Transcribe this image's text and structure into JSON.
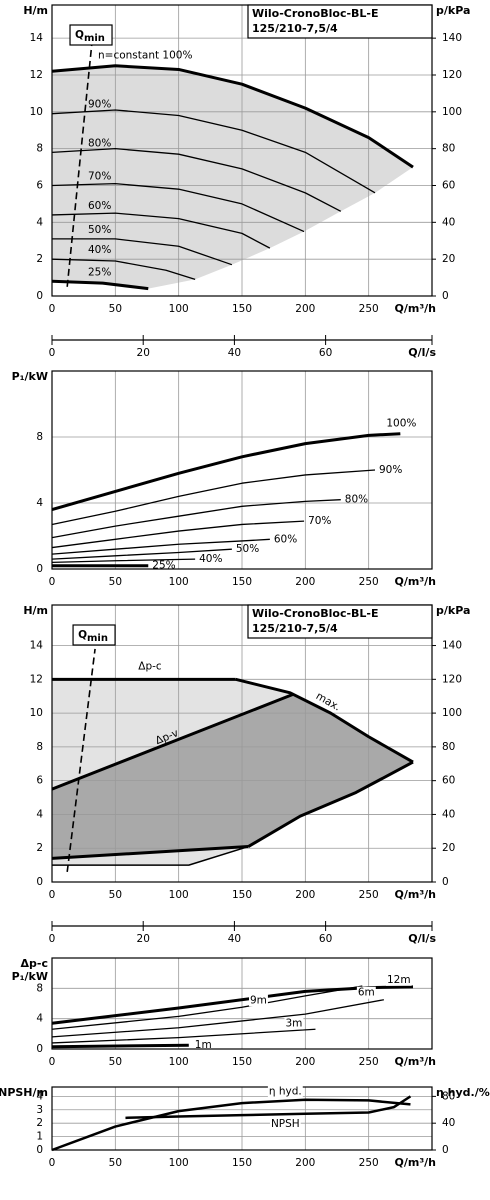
{
  "chart_data": [
    {
      "type": "line",
      "title": [
        "Wilo-CronoBloc-BL-E",
        "125/210-7,5/4"
      ],
      "ylabel": "H/m",
      "y2label": "p/kPa",
      "xlabel": "Q/m³/h",
      "x2label": "Q/l/s",
      "xlim": [
        0,
        300
      ],
      "xticks": [
        0,
        50,
        100,
        150,
        200,
        250
      ],
      "ylim": [
        0,
        15.8
      ],
      "yticks": [
        0,
        2,
        4,
        6,
        8,
        10,
        12,
        14
      ],
      "y2lim": [
        0,
        158
      ],
      "y2ticks": [
        0,
        20,
        40,
        60,
        80,
        100,
        120,
        140
      ],
      "x2lim": [
        0,
        83.33
      ],
      "x2ticks": [
        0,
        20,
        40,
        60
      ],
      "grid": true,
      "area_colors": [
        "#dcdcdc"
      ],
      "qmin": {
        "label": [
          "Q",
          "min"
        ],
        "x": [
          12,
          31.6
        ],
        "values": [
          0.5,
          13.8
        ]
      },
      "series": [
        {
          "name": "n=constant 100%",
          "color": "#000000",
          "width": 3,
          "x": [
            0,
            50,
            100,
            150,
            200,
            250,
            285
          ],
          "values": [
            12.2,
            12.5,
            12.3,
            11.5,
            10.2,
            8.6,
            7.0
          ]
        },
        {
          "name": "90%",
          "color": "#000000",
          "width": 1.3,
          "x": [
            0,
            50,
            100,
            150,
            200,
            255
          ],
          "values": [
            9.9,
            10.1,
            9.8,
            9.0,
            7.8,
            5.6
          ]
        },
        {
          "name": "80%",
          "color": "#000000",
          "width": 1.3,
          "x": [
            0,
            50,
            100,
            150,
            200,
            228
          ],
          "values": [
            7.8,
            8.0,
            7.7,
            6.9,
            5.6,
            4.6
          ]
        },
        {
          "name": "70%",
          "color": "#000000",
          "width": 1.3,
          "x": [
            0,
            50,
            100,
            150,
            199
          ],
          "values": [
            6.0,
            6.1,
            5.8,
            5.0,
            3.5
          ]
        },
        {
          "name": "60%",
          "color": "#000000",
          "width": 1.3,
          "x": [
            0,
            50,
            100,
            150,
            172
          ],
          "values": [
            4.4,
            4.5,
            4.2,
            3.4,
            2.6
          ]
        },
        {
          "name": "50%",
          "color": "#000000",
          "width": 1.3,
          "x": [
            0,
            50,
            100,
            142
          ],
          "values": [
            3.1,
            3.1,
            2.7,
            1.7
          ]
        },
        {
          "name": "40%",
          "color": "#000000",
          "width": 1.3,
          "x": [
            0,
            50,
            90,
            113
          ],
          "values": [
            2.0,
            1.9,
            1.4,
            0.9
          ]
        },
        {
          "name": "25%",
          "color": "#000000",
          "width": 3,
          "x": [
            0,
            40,
            76
          ],
          "values": [
            0.8,
            0.7,
            0.4
          ]
        }
      ]
    },
    {
      "type": "line",
      "ylabel": [
        "P₁/kW"
      ],
      "xlabel": "Q/m³/h",
      "xlim": [
        0,
        300
      ],
      "xticks": [
        0,
        50,
        100,
        150,
        200,
        250
      ],
      "ylim": [
        0,
        12
      ],
      "yticks": [
        0,
        4,
        8
      ],
      "grid": true,
      "series": [
        {
          "name": "100%",
          "color": "#000000",
          "width": 3,
          "x": [
            0,
            50,
            100,
            150,
            200,
            250,
            275
          ],
          "values": [
            3.6,
            4.7,
            5.8,
            6.8,
            7.6,
            8.1,
            8.2
          ]
        },
        {
          "name": "90%",
          "color": "#000000",
          "width": 1.3,
          "x": [
            0,
            50,
            100,
            150,
            200,
            255
          ],
          "values": [
            2.7,
            3.5,
            4.4,
            5.2,
            5.7,
            6.0
          ]
        },
        {
          "name": "80%",
          "color": "#000000",
          "width": 1.3,
          "x": [
            0,
            50,
            100,
            150,
            200,
            228
          ],
          "values": [
            1.9,
            2.6,
            3.2,
            3.8,
            4.1,
            4.2
          ]
        },
        {
          "name": "70%",
          "color": "#000000",
          "width": 1.3,
          "x": [
            0,
            50,
            100,
            150,
            199
          ],
          "values": [
            1.3,
            1.8,
            2.3,
            2.7,
            2.9
          ]
        },
        {
          "name": "60%",
          "color": "#000000",
          "width": 1.3,
          "x": [
            0,
            50,
            100,
            150,
            172
          ],
          "values": [
            0.9,
            1.2,
            1.5,
            1.7,
            1.8
          ]
        },
        {
          "name": "50%",
          "color": "#000000",
          "width": 1.3,
          "x": [
            0,
            50,
            100,
            142
          ],
          "values": [
            0.6,
            0.8,
            1.0,
            1.2
          ]
        },
        {
          "name": "40%",
          "color": "#000000",
          "width": 1.3,
          "x": [
            0,
            50,
            113
          ],
          "values": [
            0.4,
            0.5,
            0.6
          ]
        },
        {
          "name": "25%",
          "color": "#000000",
          "width": 3,
          "x": [
            0,
            76
          ],
          "values": [
            0.2,
            0.2
          ]
        }
      ]
    },
    {
      "type": "line",
      "title": [
        "Wilo-CronoBloc-BL-E",
        "125/210-7,5/4"
      ],
      "ylabel": "H/m",
      "y2label": "p/kPa",
      "xlabel": "Q/m³/h",
      "x2label": "Q/l/s",
      "xlim": [
        0,
        300
      ],
      "xticks": [
        0,
        50,
        100,
        150,
        200,
        250
      ],
      "ylim": [
        0,
        16.4
      ],
      "yticks": [
        0,
        2,
        4,
        6,
        8,
        10,
        12,
        14
      ],
      "y2lim": [
        0,
        164
      ],
      "y2ticks": [
        0,
        20,
        40,
        60,
        80,
        100,
        120,
        140
      ],
      "x2lim": [
        0,
        83.33
      ],
      "x2ticks": [
        0,
        20,
        40,
        60
      ],
      "grid": true,
      "area_colors": [
        "#e3e3e3",
        "#a9a9a9"
      ],
      "qmin": {
        "label": [
          "Q",
          "min"
        ],
        "x": [
          12,
          34
        ],
        "values": [
          0.6,
          13.8
        ]
      },
      "series": [
        {
          "name": "Δp-c",
          "color": "#000000",
          "width": 3,
          "x": [
            0,
            145
          ],
          "values": [
            12,
            12
          ]
        },
        {
          "name": "max.",
          "color": "#000000",
          "width": 3,
          "x": [
            145,
            188,
            220,
            250,
            285
          ],
          "values": [
            12,
            11.2,
            10.0,
            8.6,
            7.1
          ]
        },
        {
          "name": "Δp-v",
          "color": "#000000",
          "width": 3,
          "x": [
            0,
            190
          ],
          "values": [
            5.5,
            11.1
          ]
        },
        {
          "color": "#000000",
          "width": 3,
          "x": [
            285,
            240,
            196,
            155
          ],
          "values": [
            7.1,
            5.3,
            3.9,
            2.1
          ]
        },
        {
          "color": "#000000",
          "width": 3,
          "x": [
            0,
            155
          ],
          "values": [
            1.4,
            2.1
          ]
        },
        {
          "color": "#000000",
          "width": 1.5,
          "x": [
            0,
            108,
            155
          ],
          "values": [
            1.0,
            1.0,
            2.1
          ]
        }
      ]
    },
    {
      "type": "line",
      "ylabel": [
        "Δp-c",
        "P₁/kW"
      ],
      "xlabel": "Q/m³/h",
      "xlim": [
        0,
        300
      ],
      "xticks": [
        0,
        50,
        100,
        150,
        200,
        250
      ],
      "ylim": [
        0,
        12
      ],
      "yticks": [
        0,
        4,
        8
      ],
      "grid": true,
      "series": [
        {
          "name": "12m",
          "color": "#000000",
          "width": 3,
          "x": [
            0,
            100,
            200,
            250,
            285
          ],
          "values": [
            3.4,
            5.4,
            7.6,
            8.1,
            8.2
          ]
        },
        {
          "name": "9m",
          "color": "#000000",
          "width": 1.3,
          "x": [
            0,
            100,
            150,
            200,
            245
          ],
          "values": [
            2.6,
            4.3,
            5.5,
            7.0,
            8.3
          ]
        },
        {
          "name": "6m",
          "color": "#000000",
          "width": 1.3,
          "x": [
            0,
            100,
            200,
            262
          ],
          "values": [
            1.6,
            2.8,
            4.6,
            6.5
          ]
        },
        {
          "name": "3m",
          "color": "#000000",
          "width": 1.3,
          "x": [
            0,
            100,
            208
          ],
          "values": [
            0.8,
            1.5,
            2.6
          ]
        },
        {
          "name": "1m",
          "color": "#000000",
          "width": 3,
          "x": [
            0,
            108
          ],
          "values": [
            0.3,
            0.5
          ]
        }
      ]
    },
    {
      "type": "line",
      "ylabel": [
        "NPSH/m"
      ],
      "y2label": "η hyd./%",
      "xlabel": "Q/m³/h",
      "xlim": [
        0,
        300
      ],
      "xticks": [
        0,
        50,
        100,
        150,
        200,
        250
      ],
      "ylim": [
        0,
        4.7
      ],
      "yticks": [
        0,
        1,
        2,
        3,
        4
      ],
      "y2lim": [
        0,
        94
      ],
      "y2ticks": [
        0,
        40,
        80
      ],
      "grid": true,
      "series": [
        {
          "name": "η hyd.",
          "axis": "y2",
          "color": "#000000",
          "width": 2.5,
          "x": [
            0,
            50,
            100,
            150,
            200,
            250,
            283
          ],
          "values": [
            0,
            35,
            58,
            70,
            75,
            74,
            68
          ]
        },
        {
          "name": "NPSH",
          "color": "#000000",
          "width": 2.5,
          "x": [
            58,
            100,
            150,
            200,
            250,
            270,
            283
          ],
          "values": [
            2.4,
            2.5,
            2.6,
            2.7,
            2.8,
            3.2,
            4.0
          ]
        }
      ]
    }
  ]
}
